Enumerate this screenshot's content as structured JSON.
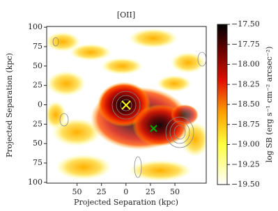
{
  "chart_data": {
    "type": "heatmap",
    "title": "[OII]",
    "x_label": "Projected Separation (kpc)",
    "y_label": "Projected Separation (kpc)",
    "xlim": [
      -81,
      82
    ],
    "xticks": [
      {
        "value": -50,
        "label": "50"
      },
      {
        "value": -25,
        "label": "25"
      },
      0,
      25,
      50
    ],
    "ylim": [
      -101,
      101
    ],
    "yticks": [
      100,
      75,
      50,
      25,
      0,
      {
        "value": -25,
        "label": "25"
      },
      {
        "value": -50,
        "label": "50"
      },
      {
        "value": -75,
        "label": "75"
      },
      {
        "value": -100,
        "label": "100"
      }
    ],
    "colorbar": {
      "label": "log SB (erg s⁻¹ cm⁻² arcsec⁻²)",
      "lim": [
        -19.5,
        -17.5
      ],
      "ticks": [
        {
          "value": -17.5,
          "label": "−17.50"
        },
        {
          "value": -17.75,
          "label": "−17.75"
        },
        {
          "value": -18,
          "label": "−18.00"
        },
        {
          "value": -18.25,
          "label": "−18.25"
        },
        {
          "value": -18.5,
          "label": "−18.50"
        },
        {
          "value": -18.75,
          "label": "−18.75"
        },
        {
          "value": -19,
          "label": "−19.00"
        },
        {
          "value": -19.25,
          "label": "−19.25"
        },
        {
          "value": -19.5,
          "label": "−19.50"
        }
      ]
    }
  }
}
